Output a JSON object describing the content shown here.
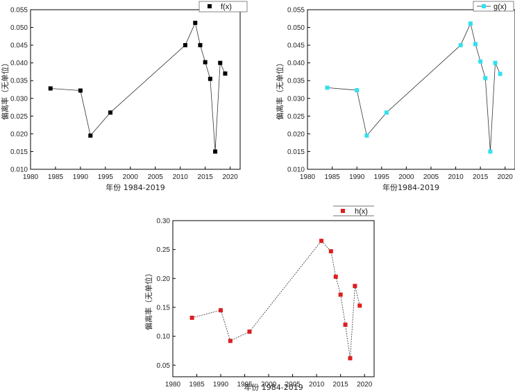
{
  "chart_data": [
    {
      "id": "f",
      "type": "line",
      "title": "",
      "xlabel": "年份 1984-2019",
      "ylabel": "偏离率（无单位）",
      "xlim": [
        1980,
        2022
      ],
      "ylim": [
        0.01,
        0.055
      ],
      "xticks": [
        1980,
        1985,
        1990,
        1995,
        2000,
        2005,
        2010,
        2015,
        2020
      ],
      "yticks": [
        "0.010",
        "0.015",
        "0.020",
        "0.025",
        "0.030",
        "0.035",
        "0.040",
        "0.045",
        "0.050",
        "0.055"
      ],
      "legend": "top-right",
      "grid": false,
      "series": [
        {
          "name": "f(x)",
          "color": "#000000",
          "x": [
            1984,
            1990,
            1992,
            1996,
            2011,
            2013,
            2014,
            2015,
            2016,
            2017,
            2018,
            2019
          ],
          "values": [
            0.0328,
            0.0322,
            0.0195,
            0.026,
            0.045,
            0.0513,
            0.045,
            0.0402,
            0.0355,
            0.015,
            0.04,
            0.037
          ]
        }
      ]
    },
    {
      "id": "g",
      "type": "line",
      "title": "",
      "xlabel": "年份1984-2019",
      "ylabel": "偏离率（无单位）",
      "xlim": [
        1980,
        2022
      ],
      "ylim": [
        0.01,
        0.055
      ],
      "xticks": [
        1980,
        1985,
        1990,
        1995,
        2000,
        2005,
        2010,
        2015,
        2020
      ],
      "yticks": [
        "0.010",
        "0.015",
        "0.020",
        "0.025",
        "0.030",
        "0.035",
        "0.040",
        "0.045",
        "0.050",
        "0.055"
      ],
      "legend": "top-right",
      "grid": false,
      "series": [
        {
          "name": "g(x)",
          "color": "#33e0ee",
          "x": [
            1984,
            1990,
            1992,
            1996,
            2011,
            2013,
            2014,
            2015,
            2016,
            2017,
            2018,
            2019
          ],
          "values": [
            0.033,
            0.0323,
            0.0195,
            0.026,
            0.045,
            0.0511,
            0.0453,
            0.0404,
            0.0357,
            0.015,
            0.04,
            0.0369
          ]
        }
      ]
    },
    {
      "id": "h",
      "type": "line",
      "title": "",
      "xlabel": "年份 1984-2019",
      "ylabel": "偏离率（无单位）",
      "xlim": [
        1980,
        2022
      ],
      "ylim": [
        0.03,
        0.3
      ],
      "xticks": [
        1980,
        1985,
        1990,
        1995,
        2000,
        2005,
        2010,
        2015,
        2020
      ],
      "yticks": [
        "0.05",
        "0.10",
        "0.15",
        "0.20",
        "0.25",
        "0.30"
      ],
      "legend": "top-right",
      "grid": false,
      "series": [
        {
          "name": "h(x)",
          "color": "#dd1f1f",
          "x": [
            1984,
            1990,
            1992,
            1996,
            2011,
            2013,
            2014,
            2015,
            2016,
            2017,
            2018,
            2019
          ],
          "values": [
            0.132,
            0.145,
            0.092,
            0.108,
            0.265,
            0.247,
            0.203,
            0.172,
            0.12,
            0.062,
            0.187,
            0.153
          ]
        }
      ]
    }
  ]
}
